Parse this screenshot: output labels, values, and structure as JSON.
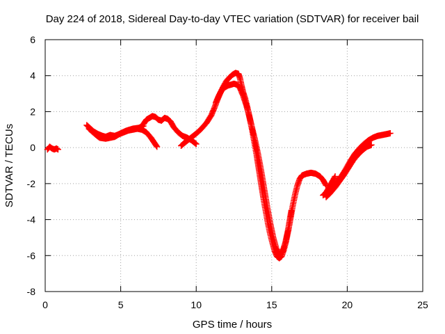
{
  "chart_data": {
    "type": "scatter",
    "title": "Day 224 of 2018, Sidereal Day-to-day VTEC variation (SDTVAR) for receiver bail",
    "xlabel": "GPS time / hours",
    "ylabel": "SDTVAR / TECUs",
    "xlim": [
      0,
      25
    ],
    "ylim": [
      -8,
      6
    ],
    "xticks": [
      0,
      5,
      10,
      15,
      20,
      25
    ],
    "yticks": [
      -8,
      -6,
      -4,
      -2,
      0,
      2,
      4,
      6
    ],
    "xtick_labels": [
      "0",
      "5",
      "10",
      "15",
      "20",
      "25"
    ],
    "ytick_labels": [
      "-8",
      "-6",
      "-4",
      "-2",
      "0",
      "2",
      "4",
      "6"
    ],
    "grid": true,
    "marker": "plus",
    "series_color": "#ff0000",
    "series": [
      {
        "segments": [
          [
            [
              0.15,
              -0.1
            ],
            [
              0.3,
              0.05
            ],
            [
              0.45,
              -0.05
            ],
            [
              0.6,
              -0.1
            ],
            [
              0.75,
              -0.05
            ],
            [
              0.85,
              -0.1
            ]
          ],
          [
            [
              2.75,
              1.25
            ],
            [
              3.0,
              1.05
            ],
            [
              3.2,
              0.9
            ],
            [
              3.5,
              0.75
            ],
            [
              3.8,
              0.65
            ],
            [
              4.0,
              0.6
            ],
            [
              4.3,
              0.7
            ],
            [
              4.6,
              0.65
            ],
            [
              4.9,
              0.75
            ],
            [
              5.2,
              0.85
            ],
            [
              5.5,
              0.95
            ],
            [
              5.8,
              1.0
            ],
            [
              6.1,
              1.05
            ],
            [
              6.4,
              1.0
            ],
            [
              6.7,
              0.85
            ],
            [
              7.0,
              0.55
            ],
            [
              7.2,
              0.3
            ],
            [
              7.4,
              0.05
            ]
          ],
          [
            [
              2.9,
              1.05
            ],
            [
              3.3,
              0.75
            ],
            [
              3.6,
              0.55
            ],
            [
              4.0,
              0.5
            ],
            [
              4.3,
              0.55
            ],
            [
              4.6,
              0.6
            ],
            [
              5.0,
              0.8
            ],
            [
              5.4,
              0.95
            ],
            [
              5.8,
              1.05
            ],
            [
              6.2,
              1.1
            ],
            [
              6.5,
              1.2
            ]
          ],
          [
            [
              6.5,
              1.3
            ],
            [
              6.7,
              1.55
            ],
            [
              6.9,
              1.65
            ],
            [
              7.1,
              1.75
            ],
            [
              7.3,
              1.7
            ],
            [
              7.5,
              1.55
            ],
            [
              7.7,
              1.5
            ],
            [
              7.9,
              1.65
            ],
            [
              8.1,
              1.6
            ],
            [
              8.3,
              1.45
            ],
            [
              8.5,
              1.15
            ],
            [
              8.8,
              0.85
            ],
            [
              9.1,
              0.65
            ],
            [
              9.4,
              0.55
            ],
            [
              9.7,
              0.4
            ],
            [
              10.0,
              0.2
            ]
          ],
          [
            [
              9.0,
              0.1
            ],
            [
              9.2,
              0.25
            ],
            [
              9.5,
              0.45
            ],
            [
              9.8,
              0.65
            ],
            [
              10.1,
              0.85
            ],
            [
              10.4,
              1.1
            ],
            [
              10.7,
              1.4
            ],
            [
              11.0,
              1.8
            ],
            [
              11.2,
              2.2
            ],
            [
              11.4,
              2.65
            ],
            [
              11.6,
              3.05
            ],
            [
              11.8,
              3.4
            ],
            [
              12.0,
              3.7
            ],
            [
              12.2,
              3.9
            ],
            [
              12.4,
              4.05
            ],
            [
              12.6,
              4.15
            ],
            [
              12.8,
              4.1
            ],
            [
              12.9,
              3.85
            ],
            [
              13.0,
              3.45
            ],
            [
              13.1,
              3.1
            ],
            [
              13.25,
              2.7
            ],
            [
              13.4,
              2.2
            ],
            [
              13.55,
              1.6
            ],
            [
              13.7,
              1.0
            ],
            [
              13.85,
              0.3
            ],
            [
              14.0,
              -0.4
            ],
            [
              14.15,
              -1.2
            ],
            [
              14.3,
              -2.0
            ],
            [
              14.45,
              -2.8
            ],
            [
              14.6,
              -3.5
            ],
            [
              14.75,
              -4.2
            ],
            [
              14.9,
              -4.8
            ],
            [
              15.05,
              -5.3
            ],
            [
              15.2,
              -5.75
            ],
            [
              15.35,
              -6.05
            ],
            [
              15.5,
              -6.15
            ],
            [
              15.65,
              -6.05
            ],
            [
              15.8,
              -5.7
            ],
            [
              15.95,
              -5.2
            ],
            [
              16.1,
              -4.6
            ],
            [
              16.25,
              -3.9
            ],
            [
              16.4,
              -3.2
            ],
            [
              16.55,
              -2.6
            ],
            [
              16.7,
              -2.1
            ],
            [
              16.85,
              -1.75
            ],
            [
              17.0,
              -1.55
            ],
            [
              17.3,
              -1.45
            ],
            [
              17.6,
              -1.4
            ],
            [
              17.9,
              -1.45
            ],
            [
              18.2,
              -1.6
            ],
            [
              18.4,
              -1.8
            ],
            [
              18.6,
              -2.1
            ]
          ],
          [
            [
              11.3,
              2.5
            ],
            [
              11.5,
              2.9
            ],
            [
              11.7,
              3.2
            ],
            [
              11.9,
              3.35
            ],
            [
              12.1,
              3.45
            ],
            [
              12.3,
              3.5
            ],
            [
              12.5,
              3.55
            ],
            [
              12.7,
              3.5
            ],
            [
              12.9,
              3.3
            ],
            [
              13.1,
              2.9
            ],
            [
              13.3,
              2.4
            ],
            [
              13.5,
              1.8
            ],
            [
              13.7,
              1.1
            ],
            [
              13.9,
              0.4
            ],
            [
              14.1,
              -0.4
            ],
            [
              14.3,
              -1.3
            ],
            [
              14.5,
              -2.3
            ],
            [
              14.7,
              -3.3
            ],
            [
              14.9,
              -4.2
            ],
            [
              15.1,
              -5.0
            ],
            [
              15.3,
              -5.6
            ],
            [
              15.5,
              -5.9
            ],
            [
              15.7,
              -5.8
            ],
            [
              15.9,
              -5.3
            ],
            [
              16.1,
              -4.5
            ],
            [
              16.3,
              -3.5
            ]
          ],
          [
            [
              18.4,
              -2.65
            ],
            [
              18.6,
              -2.5
            ],
            [
              18.8,
              -2.2
            ],
            [
              19.0,
              -1.9
            ],
            [
              19.2,
              -1.6
            ]
          ],
          [
            [
              18.6,
              -2.75
            ],
            [
              18.9,
              -2.5
            ],
            [
              19.2,
              -2.2
            ],
            [
              19.5,
              -1.85
            ],
            [
              19.8,
              -1.5
            ],
            [
              20.1,
              -1.1
            ],
            [
              20.4,
              -0.7
            ],
            [
              20.7,
              -0.4
            ],
            [
              21.0,
              -0.15
            ],
            [
              21.3,
              0.05
            ],
            [
              21.6,
              0.15
            ]
          ],
          [
            [
              19.0,
              -2.3
            ],
            [
              19.3,
              -1.95
            ],
            [
              19.6,
              -1.6
            ],
            [
              19.9,
              -1.2
            ],
            [
              20.2,
              -0.75
            ],
            [
              20.5,
              -0.35
            ],
            [
              20.8,
              -0.05
            ],
            [
              21.1,
              0.2
            ],
            [
              21.4,
              0.4
            ],
            [
              21.7,
              0.55
            ],
            [
              22.0,
              0.65
            ],
            [
              22.3,
              0.7
            ],
            [
              22.6,
              0.75
            ],
            [
              22.85,
              0.8
            ]
          ]
        ]
      }
    ]
  }
}
